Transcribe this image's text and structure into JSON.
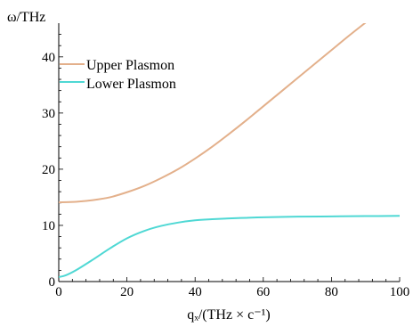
{
  "chart_data": {
    "type": "line",
    "title": "",
    "xlabel": "qₓ/(THz × c⁻¹)",
    "ylabel": "ω/THz",
    "xlim": [
      0,
      100
    ],
    "ylim": [
      0,
      46
    ],
    "xticks": [
      0,
      20,
      40,
      60,
      80,
      100
    ],
    "yticks": [
      0,
      10,
      20,
      30,
      40
    ],
    "legend_position": "top-left",
    "grid": false,
    "series": [
      {
        "name": "Upper Plasmon",
        "color": "#e3b08b",
        "x": [
          0,
          5,
          10,
          15,
          20,
          25,
          30,
          35,
          40,
          45,
          50,
          55,
          60,
          65,
          70,
          75,
          80,
          85,
          90,
          95
        ],
        "y": [
          14.1,
          14.2,
          14.5,
          15.0,
          15.9,
          17.0,
          18.4,
          20.0,
          21.9,
          24.0,
          26.3,
          28.7,
          31.2,
          33.7,
          36.2,
          38.7,
          41.2,
          43.7,
          46.1,
          48.5
        ]
      },
      {
        "name": "Lower Plasmon",
        "color": "#4fd8d4",
        "x": [
          0,
          2,
          5,
          10,
          15,
          20,
          25,
          30,
          35,
          40,
          45,
          50,
          55,
          60,
          70,
          80,
          90,
          100
        ],
        "y": [
          0.8,
          1.1,
          2.0,
          3.9,
          5.9,
          7.7,
          9.0,
          9.9,
          10.5,
          10.9,
          11.1,
          11.25,
          11.35,
          11.45,
          11.55,
          11.6,
          11.65,
          11.7
        ]
      }
    ]
  }
}
